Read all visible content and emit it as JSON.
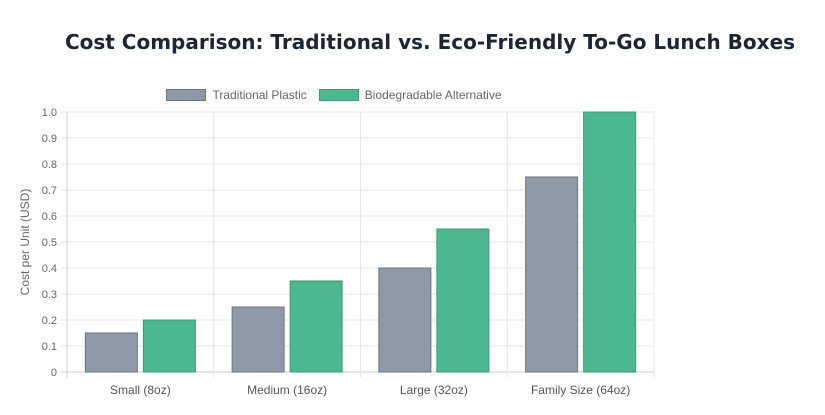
{
  "chart_data": {
    "type": "bar",
    "title": "Cost Comparison: Traditional vs. Eco-Friendly To-Go Lunch Boxes",
    "xlabel": "",
    "ylabel": "Cost per Unit (USD)",
    "categories": [
      "Small (8oz)",
      "Medium (16oz)",
      "Large (32oz)",
      "Family Size (64oz)"
    ],
    "series": [
      {
        "name": "Traditional Plastic",
        "values": [
          0.15,
          0.25,
          0.4,
          0.75
        ],
        "color": "#8f9aa9",
        "border": "#6b7583"
      },
      {
        "name": "Biodegradable Alternative",
        "values": [
          0.2,
          0.35,
          0.55,
          1.0
        ],
        "color": "#4db890",
        "border": "#3a9a74"
      }
    ],
    "ylim": [
      0,
      1.0
    ],
    "yticks": [
      "0",
      "0.1",
      "0.2",
      "0.3",
      "0.4",
      "0.5",
      "0.6",
      "0.7",
      "0.8",
      "0.9",
      "1.0"
    ],
    "grid": true,
    "legend_position": "top"
  }
}
